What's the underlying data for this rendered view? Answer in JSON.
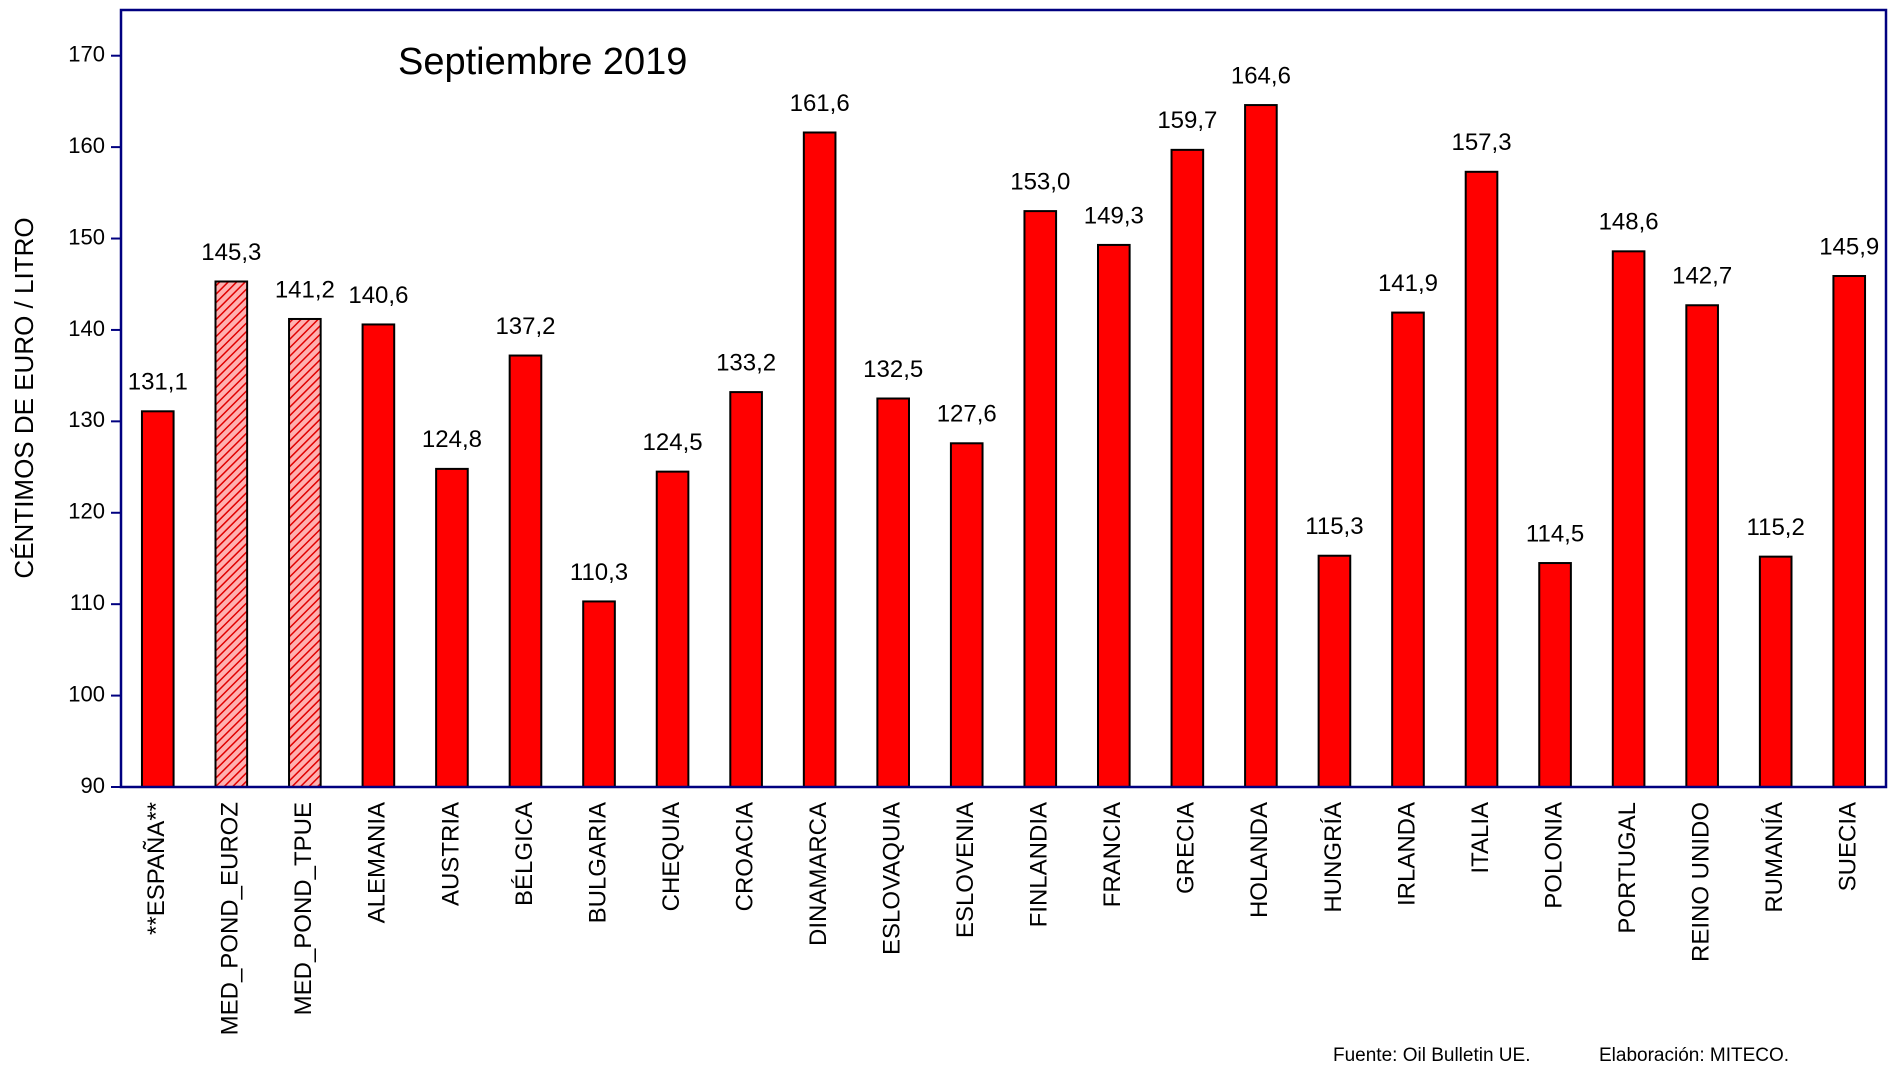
{
  "chart_data": {
    "type": "bar",
    "title": "Septiembre 2019",
    "y_label": "CÉNTIMOS DE EURO / LITRO",
    "categories": [
      "**ESPAÑA**",
      "MED_POND_EUROZ",
      "MED_POND_TPUE",
      "ALEMANIA",
      "AUSTRIA",
      "BÉLGICA",
      "BULGARIA",
      "CHEQUIA",
      "CROACIA",
      "DINAMARCA",
      "ESLOVAQUIA",
      "ESLOVENIA",
      "FINLANDIA",
      "FRANCIA",
      "GRECIA",
      "HOLANDA",
      "HUNGRÍA",
      "IRLANDA",
      "ITALIA",
      "POLONIA",
      "PORTUGAL",
      "REINO UNIDO",
      "RUMANÍA",
      "SUECIA"
    ],
    "values": [
      131.1,
      145.3,
      141.2,
      140.6,
      124.8,
      137.2,
      110.3,
      124.5,
      133.2,
      161.6,
      132.5,
      127.6,
      153.0,
      149.3,
      159.7,
      164.6,
      115.3,
      141.9,
      157.3,
      114.5,
      148.6,
      142.7,
      115.2,
      145.9
    ],
    "value_labels": [
      "131,1",
      "145,3",
      "141,2",
      "140,6",
      "124,8",
      "137,2",
      "110,3",
      "124,5",
      "133,2",
      "161,6",
      "132,5",
      "127,6",
      "153,0",
      "149,3",
      "159,7",
      "164,6",
      "115,3",
      "141,9",
      "157,3",
      "114,5",
      "148,6",
      "142,7",
      "115,2",
      "145,9"
    ],
    "hatched": [
      false,
      true,
      true,
      false,
      false,
      false,
      false,
      false,
      false,
      false,
      false,
      false,
      false,
      false,
      false,
      false,
      false,
      false,
      false,
      false,
      false,
      false,
      false,
      false
    ],
    "color": "#ff0000",
    "ylim": [
      90,
      175
    ],
    "yticks": [
      90,
      100,
      110,
      120,
      130,
      140,
      150,
      160,
      170
    ],
    "notes": [
      "Fuente: Oil Bulletin UE.",
      "Elaboración: MITECO."
    ]
  }
}
